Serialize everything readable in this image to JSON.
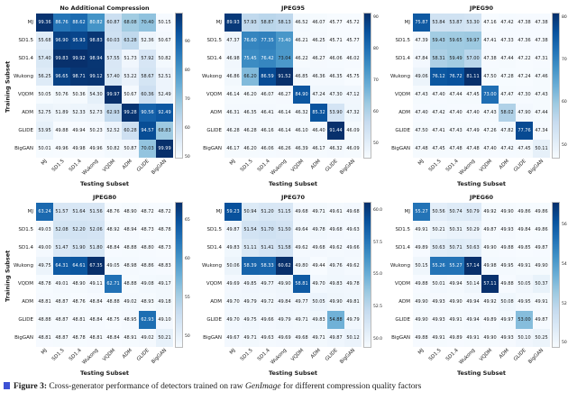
{
  "figure": {
    "caption_label": "Figure 3:",
    "caption_text": " Cross-generator performance of detectors trained on raw ",
    "caption_italic": "GenImage",
    "caption_suffix": " for different compression quality factors"
  },
  "axis": {
    "x_label": "Testing Subset",
    "y_label": "Training Subset"
  },
  "chart_data": [
    {
      "type": "heatmap",
      "title": "No Additional Compression",
      "colormap": "Blues",
      "x_categories": [
        "MJ",
        "SD1.5",
        "SD1.4",
        "Wukong",
        "VQDM",
        "ADM",
        "GLIDE",
        "BigGAN"
      ],
      "y_categories": [
        "MJ",
        "SD1.5",
        "SD1.4",
        "Wukong",
        "VQDM",
        "ADM",
        "GLIDE",
        "BigGAN"
      ],
      "values": [
        [
          99.36,
          86.76,
          88.62,
          80.82,
          60.87,
          68.08,
          70.4,
          50.15
        ],
        [
          55.68,
          96.9,
          95.93,
          98.83,
          60.03,
          63.28,
          52.36,
          50.67
        ],
        [
          57.4,
          99.83,
          99.92,
          98.94,
          57.55,
          51.73,
          57.92,
          50.82
        ],
        [
          56.25,
          96.65,
          98.71,
          99.12,
          57.4,
          53.22,
          58.67,
          52.51
        ],
        [
          50.05,
          50.76,
          50.36,
          54.3,
          99.97,
          50.67,
          60.36,
          52.49
        ],
        [
          52.75,
          51.89,
          52.33,
          52.73,
          62.93,
          99.28,
          90.56,
          92.49
        ],
        [
          53.95,
          49.88,
          49.94,
          50.23,
          52.52,
          60.28,
          94.57,
          68.83
        ],
        [
          50.01,
          49.96,
          49.98,
          49.96,
          50.82,
          50.87,
          70.03,
          99.99
        ]
      ],
      "colorbar_ticks": [
        "90",
        "80",
        "70",
        "60",
        "50"
      ]
    },
    {
      "type": "heatmap",
      "title": "JPEG95",
      "colormap": "Blues",
      "x_categories": [
        "MJ",
        "SD1.5",
        "SD1.4",
        "Wukong",
        "VQDM",
        "ADM",
        "GLIDE",
        "BigGAN"
      ],
      "y_categories": [
        "MJ",
        "SD1.5",
        "SD1.4",
        "Wukong",
        "VQDM",
        "ADM",
        "GLIDE",
        "BigGAN"
      ],
      "values": [
        [
          89.93,
          57.93,
          58.87,
          58.13,
          46.52,
          46.07,
          45.77,
          45.72
        ],
        [
          47.37,
          76.6,
          77.35,
          73.4,
          46.21,
          46.25,
          45.71,
          45.77
        ],
        [
          46.98,
          75.45,
          76.42,
          73.04,
          46.22,
          46.27,
          46.06,
          46.02
        ],
        [
          46.86,
          66.2,
          86.59,
          91.52,
          46.85,
          46.36,
          46.35,
          45.75
        ],
        [
          46.14,
          46.2,
          46.07,
          46.27,
          84.9,
          47.24,
          47.3,
          47.12
        ],
        [
          46.31,
          46.35,
          46.41,
          46.14,
          46.32,
          85.32,
          53.9,
          47.32
        ],
        [
          46.28,
          46.28,
          46.16,
          46.14,
          46.1,
          46.4,
          91.44,
          46.09
        ],
        [
          46.17,
          46.2,
          46.06,
          46.26,
          46.39,
          46.17,
          46.32,
          46.09
        ]
      ],
      "colorbar_ticks": [
        "90",
        "80",
        "70",
        "60",
        "50"
      ]
    },
    {
      "type": "heatmap",
      "title": "JPEG90",
      "colormap": "Blues",
      "x_categories": [
        "MJ",
        "SD1.5",
        "SD1.4",
        "Wukong",
        "VQDM",
        "ADM",
        "GLIDE",
        "BigGAN"
      ],
      "y_categories": [
        "MJ",
        "SD1.5",
        "SD1.4",
        "Wukong",
        "VQDM",
        "ADM",
        "GLIDE",
        "BigGAN"
      ],
      "values": [
        [
          75.87,
          53.84,
          53.87,
          53.3,
          47.16,
          47.42,
          47.38,
          47.38
        ],
        [
          47.39,
          59.43,
          59.65,
          59.97,
          47.41,
          47.33,
          47.36,
          47.38
        ],
        [
          47.84,
          58.31,
          59.49,
          57.0,
          47.38,
          47.44,
          47.22,
          47.31
        ],
        [
          49.06,
          76.12,
          76.72,
          81.11,
          47.5,
          47.28,
          47.24,
          47.46
        ],
        [
          47.43,
          47.4,
          47.44,
          47.45,
          73.0,
          47.47,
          47.3,
          47.43
        ],
        [
          47.4,
          47.42,
          47.4,
          47.4,
          47.43,
          58.02,
          47.9,
          47.44
        ],
        [
          47.5,
          47.41,
          47.43,
          47.49,
          47.26,
          47.82,
          77.76,
          47.34
        ],
        [
          47.48,
          47.45,
          47.48,
          47.48,
          47.4,
          47.42,
          47.45,
          50.11
        ]
      ],
      "colorbar_ticks": [
        "80",
        "70",
        "60",
        "50"
      ]
    },
    {
      "type": "heatmap",
      "title": "JPEG80",
      "colormap": "Blues",
      "x_categories": [
        "MJ",
        "SD1.5",
        "SD1.4",
        "Wukong",
        "VQDM",
        "ADM",
        "GLIDE",
        "BigGAN"
      ],
      "y_categories": [
        "MJ",
        "SD1.5",
        "SD1.4",
        "Wukong",
        "VQDM",
        "ADM",
        "GLIDE",
        "BigGAN"
      ],
      "values": [
        [
          63.24,
          51.57,
          51.64,
          51.56,
          48.76,
          48.9,
          48.72,
          48.72
        ],
        [
          49.03,
          52.08,
          52.2,
          52.06,
          48.92,
          48.94,
          48.73,
          48.78
        ],
        [
          49.0,
          51.47,
          51.9,
          51.8,
          48.84,
          48.88,
          48.8,
          48.73
        ],
        [
          49.75,
          64.31,
          64.61,
          67.35,
          49.05,
          48.98,
          48.86,
          48.83
        ],
        [
          48.78,
          49.01,
          48.9,
          49.11,
          62.71,
          48.88,
          49.08,
          49.17
        ],
        [
          48.81,
          48.87,
          48.76,
          48.84,
          48.88,
          49.02,
          48.93,
          49.18
        ],
        [
          48.88,
          48.87,
          48.81,
          48.84,
          48.75,
          48.95,
          62.93,
          49.1
        ],
        [
          48.81,
          48.87,
          48.78,
          48.81,
          48.84,
          48.91,
          49.02,
          50.21
        ]
      ],
      "colorbar_ticks": [
        "65",
        "60",
        "55",
        "50"
      ]
    },
    {
      "type": "heatmap",
      "title": "JPEG70",
      "colormap": "Blues",
      "x_categories": [
        "MJ",
        "SD1.5",
        "SD1.4",
        "Wukong",
        "VQDM",
        "ADM",
        "GLIDE",
        "BigGAN"
      ],
      "y_categories": [
        "MJ",
        "SD1.5",
        "SD1.4",
        "Wukong",
        "VQDM",
        "ADM",
        "GLIDE",
        "BigGAN"
      ],
      "values": [
        [
          59.23,
          50.94,
          51.2,
          51.15,
          49.68,
          49.71,
          49.61,
          49.68
        ],
        [
          49.87,
          51.54,
          51.7,
          51.5,
          49.64,
          49.78,
          49.68,
          49.63
        ],
        [
          49.83,
          51.11,
          51.41,
          51.58,
          49.62,
          49.68,
          49.62,
          49.66
        ],
        [
          50.06,
          58.39,
          58.33,
          60.62,
          49.8,
          49.44,
          49.76,
          49.62
        ],
        [
          49.69,
          49.85,
          49.77,
          49.9,
          58.81,
          49.7,
          49.83,
          49.78
        ],
        [
          49.7,
          49.79,
          49.72,
          49.84,
          49.77,
          50.05,
          49.9,
          49.81
        ],
        [
          49.7,
          49.75,
          49.66,
          49.79,
          49.71,
          49.83,
          54.88,
          49.79
        ],
        [
          49.67,
          49.71,
          49.63,
          49.69,
          49.68,
          49.71,
          49.87,
          50.12
        ]
      ],
      "colorbar_ticks": [
        "60.0",
        "57.5",
        "55.0",
        "52.5",
        "50.0"
      ]
    },
    {
      "type": "heatmap",
      "title": "JPEG60",
      "colormap": "Blues",
      "x_categories": [
        "MJ",
        "SD1.5",
        "SD1.4",
        "Wukong",
        "VQDM",
        "ADM",
        "GLIDE",
        "BigGAN"
      ],
      "y_categories": [
        "MJ",
        "SD1.5",
        "SD1.4",
        "Wukong",
        "VQDM",
        "ADM",
        "GLIDE",
        "BigGAN"
      ],
      "values": [
        [
          55.27,
          50.56,
          50.74,
          50.79,
          49.92,
          49.9,
          49.86,
          49.86
        ],
        [
          49.91,
          50.21,
          50.31,
          50.29,
          49.87,
          49.93,
          49.84,
          49.86
        ],
        [
          49.89,
          50.63,
          50.71,
          50.63,
          49.9,
          49.88,
          49.85,
          49.87
        ],
        [
          50.15,
          55.26,
          55.27,
          57.14,
          49.98,
          49.95,
          49.91,
          49.9
        ],
        [
          49.88,
          50.01,
          49.94,
          50.14,
          57.11,
          49.88,
          50.05,
          50.37
        ],
        [
          49.9,
          49.93,
          49.9,
          49.94,
          49.92,
          50.08,
          49.95,
          49.91
        ],
        [
          49.9,
          49.93,
          49.91,
          49.94,
          49.89,
          49.97,
          53.0,
          49.87
        ],
        [
          49.88,
          49.91,
          49.89,
          49.91,
          49.9,
          49.93,
          50.1,
          50.25
        ]
      ],
      "colorbar_ticks": [
        "56",
        "54",
        "52",
        "50"
      ]
    }
  ]
}
